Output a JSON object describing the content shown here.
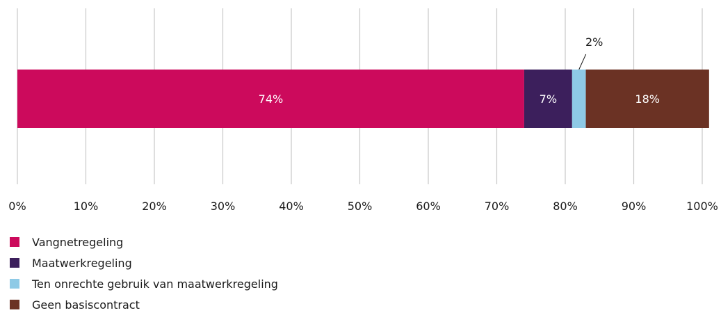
{
  "chart_data": {
    "type": "bar",
    "orientation": "horizontal",
    "stacked": true,
    "xlim": [
      0,
      100
    ],
    "ticks": [
      0,
      10,
      20,
      30,
      40,
      50,
      60,
      70,
      80,
      90,
      100
    ],
    "tick_labels": [
      "0%",
      "10%",
      "20%",
      "30%",
      "40%",
      "50%",
      "60%",
      "70%",
      "80%",
      "90%",
      "100%"
    ],
    "grid": true,
    "legend_position": "bottom-left",
    "series": [
      {
        "name": "Vangnetregeling",
        "value": 74,
        "label": "74%",
        "color": "#cc0a5c",
        "label_color": "#ffffff",
        "label_position": "inside"
      },
      {
        "name": "Maatwerkregeling",
        "value": 7,
        "label": "7%",
        "color": "#3c1f5c",
        "label_color": "#ffffff",
        "label_position": "inside"
      },
      {
        "name": "Ten onrechte gebruik van maatwerkregeling",
        "value": 2,
        "label": "2%",
        "color": "#8ecae6",
        "label_color": "#1a1a1a",
        "label_position": "above"
      },
      {
        "name": "Geen basiscontract",
        "value": 18,
        "label": "18%",
        "color": "#6b3224",
        "label_color": "#ffffff",
        "label_position": "inside"
      }
    ]
  }
}
